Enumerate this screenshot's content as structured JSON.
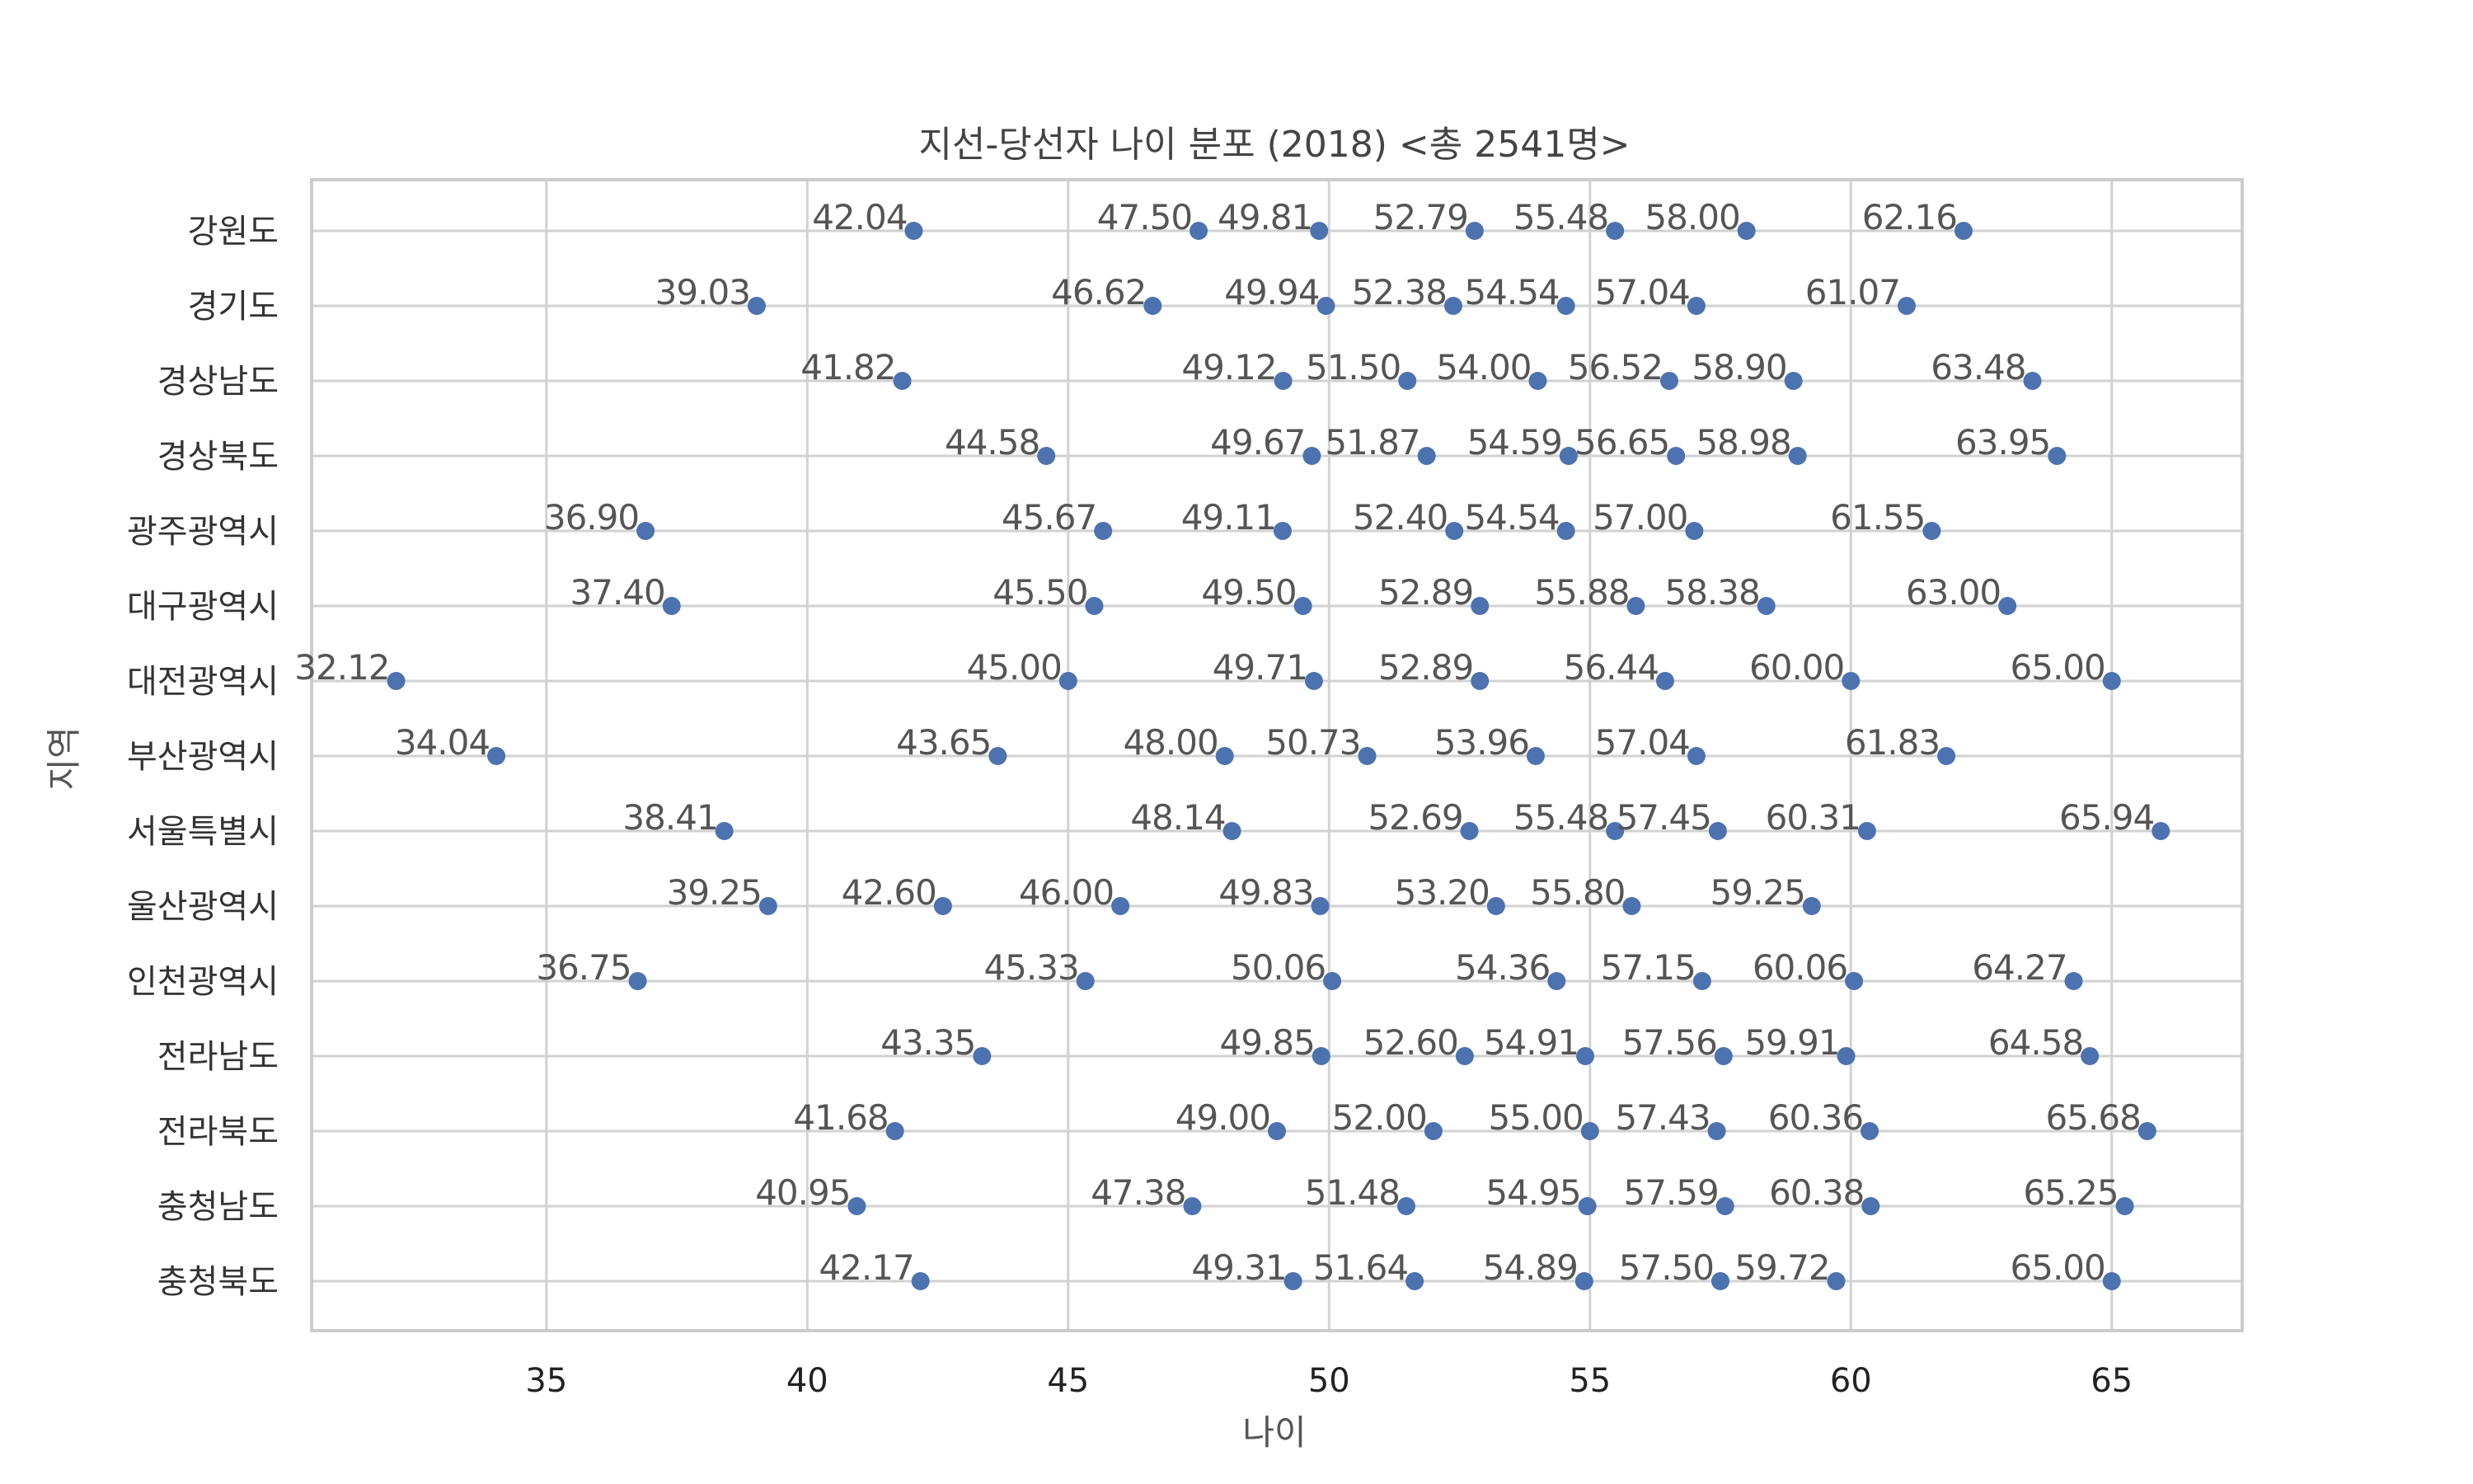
{
  "chart_data": {
    "type": "scatter",
    "title": "지선-당선자 나이 분포 (2018)  <총 2541명>",
    "xlabel": "나이",
    "ylabel": "지역",
    "xlim": [
      30.5,
      67.5
    ],
    "xticks": [
      35,
      40,
      45,
      50,
      55,
      60,
      65
    ],
    "grid": true,
    "categories": [
      "강원도",
      "경기도",
      "경상남도",
      "경상북도",
      "광주광역시",
      "대구광역시",
      "대전광역시",
      "부산광역시",
      "서울특별시",
      "울산광역시",
      "인천광역시",
      "전라남도",
      "전라북도",
      "충청남도",
      "충청북도"
    ],
    "series": [
      {
        "values": [
          [
            42.04,
            47.5,
            49.81,
            52.79,
            55.48,
            58.0,
            62.16
          ]
        ]
      },
      {
        "values": [
          [
            39.03,
            46.62,
            49.94,
            52.38,
            54.54,
            57.04,
            61.07
          ]
        ]
      }
    ],
    "points": [
      [
        42.04,
        47.5,
        49.81,
        52.79,
        55.48,
        58.0,
        62.16
      ],
      [
        39.03,
        46.62,
        49.94,
        52.38,
        54.54,
        57.04,
        61.07
      ],
      [
        41.82,
        49.12,
        51.5,
        54.0,
        56.52,
        58.9,
        63.48
      ],
      [
        44.58,
        49.67,
        51.87,
        54.59,
        56.65,
        58.98,
        63.95
      ],
      [
        36.9,
        45.67,
        49.11,
        52.4,
        54.54,
        57.0,
        61.55
      ],
      [
        37.4,
        45.5,
        49.5,
        52.89,
        55.88,
        58.38,
        63.0
      ],
      [
        32.12,
        45.0,
        49.71,
        52.89,
        56.44,
        60.0,
        65.0
      ],
      [
        34.04,
        43.65,
        48.0,
        50.73,
        53.96,
        57.04,
        61.83
      ],
      [
        38.41,
        48.14,
        52.69,
        55.48,
        57.45,
        60.31,
        65.94
      ],
      [
        39.25,
        42.6,
        46.0,
        49.83,
        53.2,
        55.8,
        59.25
      ],
      [
        36.75,
        45.33,
        50.06,
        54.36,
        57.15,
        60.06,
        64.27
      ],
      [
        43.35,
        49.85,
        52.6,
        54.91,
        57.56,
        59.91,
        64.58
      ],
      [
        41.68,
        49.0,
        52.0,
        55.0,
        57.43,
        60.36,
        65.68
      ],
      [
        40.95,
        47.38,
        51.48,
        54.95,
        57.59,
        60.38,
        65.25
      ],
      [
        42.17,
        49.31,
        51.64,
        54.89,
        57.5,
        59.72,
        65.0
      ]
    ],
    "point_labels": [
      [
        "42.04",
        "47.50",
        "49.81",
        "52.79",
        "55.48",
        "58.00",
        "62.16"
      ],
      [
        "39.03",
        "46.62",
        "49.94",
        "52.38",
        "54.54",
        "57.04",
        "61.07"
      ],
      [
        "41.82",
        "49.12",
        "51.50",
        "54.00",
        "56.52",
        "58.90",
        "63.48"
      ],
      [
        "44.58",
        "49.67",
        "51.87",
        "54.59",
        "56.65",
        "58.98",
        "63.95"
      ],
      [
        "36.90",
        "45.67",
        "49.11",
        "52.40",
        "54.54",
        "57.00",
        "61.55"
      ],
      [
        "37.40",
        "45.50",
        "49.50",
        "52.89",
        "55.88",
        "58.38",
        "63.00"
      ],
      [
        "32.12",
        "45.00",
        "49.71",
        "52.89",
        "56.44",
        "60.00",
        "65.00"
      ],
      [
        "34.04",
        "43.65",
        "48.00",
        "50.73",
        "53.96",
        "57.04",
        "61.83"
      ],
      [
        "38.41",
        "48.14",
        "52.69",
        "55.48",
        "57.45",
        "60.31",
        "65.94"
      ],
      [
        "39.25",
        "42.60",
        "46.00",
        "49.83",
        "53.20",
        "55.80",
        "59.25"
      ],
      [
        "36.75",
        "45.33",
        "50.06",
        "54.36",
        "57.15",
        "60.06",
        "64.27"
      ],
      [
        "43.35",
        "49.85",
        "52.60",
        "54.91",
        "57.56",
        "59.91",
        "64.58"
      ],
      [
        "41.68",
        "49.00",
        "52.00",
        "55.00",
        "57.43",
        "60.36",
        "65.68"
      ],
      [
        "40.95",
        "47.38",
        "51.48",
        "54.95",
        "57.59",
        "60.38",
        "65.25"
      ],
      [
        "42.17",
        "49.31",
        "51.64",
        "54.89",
        "57.50",
        "59.72",
        "65.00"
      ]
    ],
    "colors": {
      "point": "#4c72b0",
      "grid": "#d2d2d2",
      "frame": "#cccccc"
    }
  }
}
